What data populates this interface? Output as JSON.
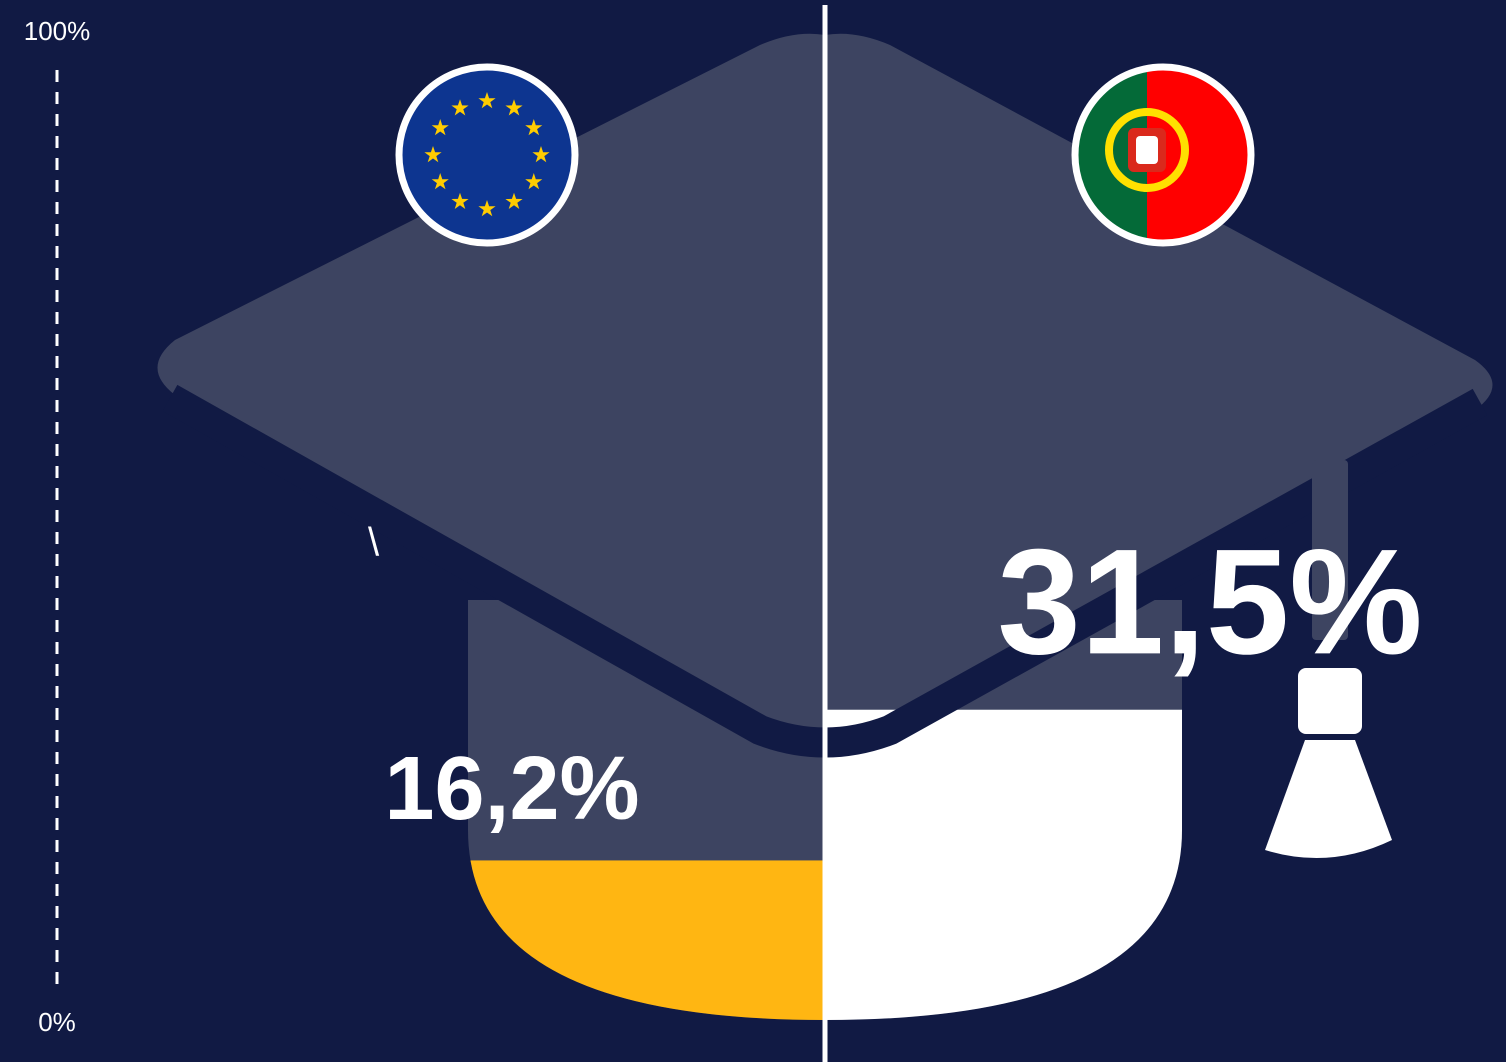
{
  "chart_data": {
    "type": "fill",
    "series": [
      {
        "color": "#ffb612",
        "values": [
          16.2
        ],
        "value_labels": [
          "16,2%"
        ]
      },
      {
        "color": "#ffffff",
        "values": [
          31.5
        ],
        "value_labels": [
          "31,5%"
        ]
      }
    ],
    "ylim": [
      0,
      100
    ],
    "yticks": [
      {
        "value": 0,
        "label": "0%"
      },
      {
        "value": 100,
        "label": "100%"
      }
    ],
    "annotation": "\\"
  }
}
